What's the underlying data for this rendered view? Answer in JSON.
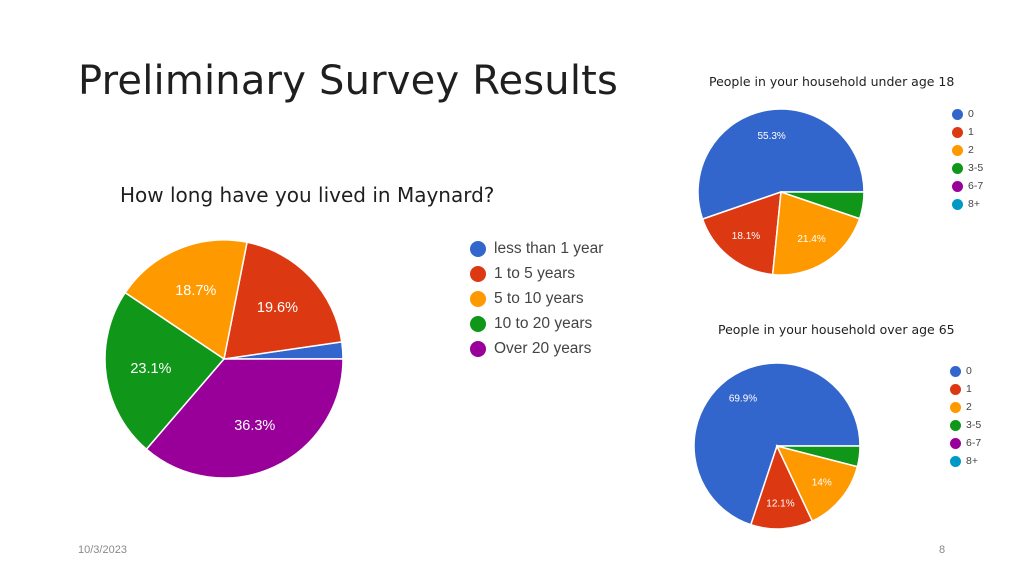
{
  "slide": {
    "title": "Preliminary Survey Results",
    "date": "10/3/2023",
    "page_number": "8"
  },
  "chart_data": [
    {
      "type": "pie",
      "title": "How long have you lived in Maynard?",
      "legend_position": "right",
      "categories": [
        "less than 1 year",
        "1 to 5 years",
        "5 to 10 years",
        "10 to 20 years",
        "Over 20 years"
      ],
      "values": [
        2.3,
        19.6,
        18.7,
        23.1,
        36.3
      ],
      "labels": [
        "",
        "19.6%",
        "18.7%",
        "23.1%",
        "36.3%"
      ],
      "colors": [
        "#3366cc",
        "#dc3912",
        "#ff9900",
        "#109618",
        "#990099"
      ]
    },
    {
      "type": "pie",
      "title": "People in your household under age 18",
      "legend_position": "right",
      "categories": [
        "0",
        "1",
        "2",
        "3-5",
        "6-7",
        "8+"
      ],
      "values": [
        55.3,
        18.1,
        21.4,
        5.2,
        0,
        0
      ],
      "labels": [
        "55.3%",
        "18.1%",
        "21.4%",
        "",
        "",
        ""
      ],
      "colors": [
        "#3366cc",
        "#dc3912",
        "#ff9900",
        "#109618",
        "#990099",
        "#0099c6"
      ]
    },
    {
      "type": "pie",
      "title": "People in your household over age 65",
      "legend_position": "right",
      "categories": [
        "0",
        "1",
        "2",
        "3-5",
        "6-7",
        "8+"
      ],
      "values": [
        69.9,
        12.1,
        14,
        4,
        0,
        0
      ],
      "labels": [
        "69.9%",
        "12.1%",
        "14%",
        "",
        "",
        ""
      ],
      "colors": [
        "#3366cc",
        "#dc3912",
        "#ff9900",
        "#109618",
        "#990099",
        "#0099c6"
      ]
    }
  ]
}
